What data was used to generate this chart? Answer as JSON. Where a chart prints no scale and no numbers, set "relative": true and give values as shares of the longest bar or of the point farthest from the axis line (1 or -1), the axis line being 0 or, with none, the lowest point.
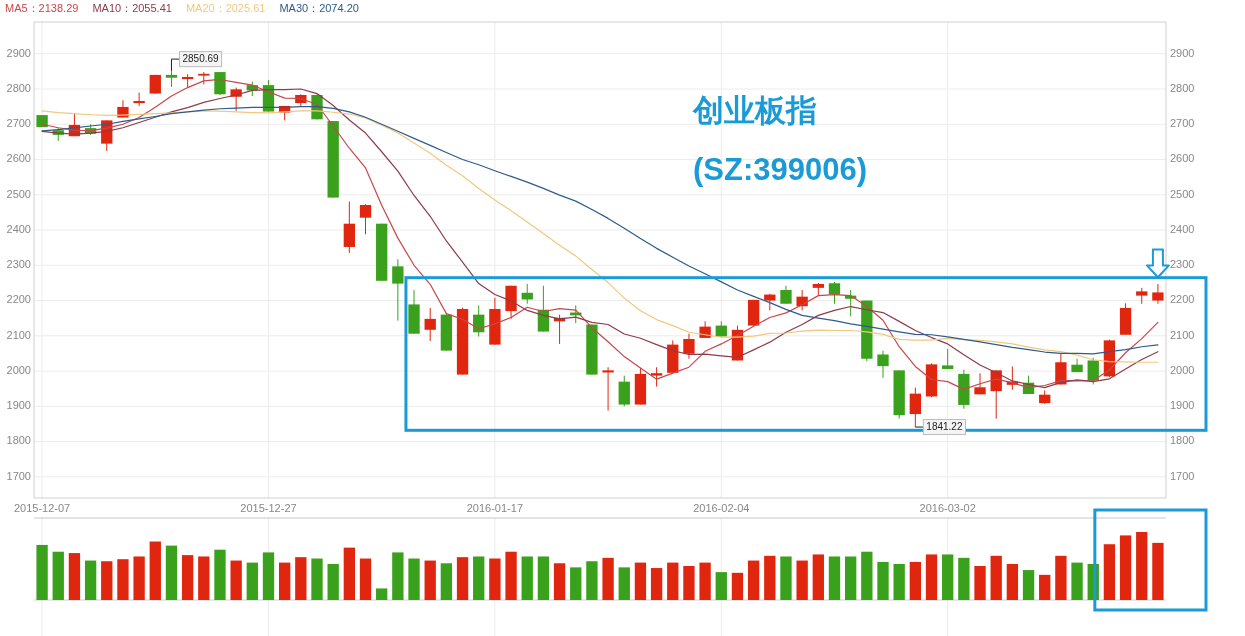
{
  "chart_data": [
    {
      "type": "candlestick",
      "title": "创业板指",
      "subtitle": "(SZ:399006)",
      "legend": "top left",
      "grid": true,
      "tick_labels": "y",
      "categories": [
        "2015-12-07",
        null,
        null,
        null,
        null,
        null,
        null,
        null,
        null,
        null,
        null,
        null,
        null,
        null,
        "2015-12-27",
        null,
        null,
        null,
        null,
        null,
        null,
        null,
        null,
        null,
        null,
        null,
        null,
        null,
        "2016-01-17",
        null,
        null,
        null,
        null,
        null,
        null,
        null,
        null,
        null,
        null,
        null,
        null,
        null,
        "2016-02-04",
        null,
        null,
        null,
        null,
        null,
        null,
        null,
        null,
        null,
        null,
        null,
        null,
        null,
        "2016-03-02",
        null,
        null,
        null,
        null,
        null,
        null,
        null,
        null,
        null,
        null,
        null,
        null,
        null
      ],
      "ohlc": [
        [
          2726,
          2726,
          2692,
          2692
        ],
        [
          2683,
          2689,
          2653,
          2670
        ],
        [
          2666,
          2730,
          2666,
          2698
        ],
        [
          2689,
          2700,
          2670,
          2673
        ],
        [
          2645,
          2711,
          2624,
          2711
        ],
        [
          2719,
          2768,
          2719,
          2749
        ],
        [
          2760,
          2790,
          2752,
          2766
        ],
        [
          2787,
          2840,
          2787,
          2840
        ],
        [
          2840,
          2850.69,
          2806,
          2832
        ],
        [
          2828,
          2842,
          2804,
          2834
        ],
        [
          2838,
          2848,
          2813,
          2843
        ],
        [
          2848,
          2848,
          2783,
          2785
        ],
        [
          2778,
          2804,
          2738,
          2799
        ],
        [
          2811,
          2821,
          2780,
          2796
        ],
        [
          2811,
          2825,
          2736,
          2736
        ],
        [
          2733,
          2752,
          2711,
          2752
        ],
        [
          2760,
          2785,
          2752,
          2783
        ],
        [
          2783,
          2785,
          2714,
          2714
        ],
        [
          2709,
          2709,
          2492,
          2492
        ],
        [
          2352,
          2481,
          2335,
          2418
        ],
        [
          2435,
          2473,
          2388,
          2471
        ],
        [
          2418,
          2418,
          2256,
          2256
        ],
        [
          2297,
          2317,
          2143,
          2248
        ],
        [
          2189,
          2230,
          2106,
          2106
        ],
        [
          2117,
          2179,
          2085,
          2148
        ],
        [
          2160,
          2164,
          2058,
          2058
        ],
        [
          1990,
          2180,
          1990,
          2176
        ],
        [
          2160,
          2186,
          2098,
          2110
        ],
        [
          2075,
          2208,
          2075,
          2176
        ],
        [
          2170,
          2242,
          2148,
          2242
        ],
        [
          2222,
          2247,
          2191,
          2203
        ],
        [
          2174,
          2242,
          2112,
          2112
        ],
        [
          2141,
          2160,
          2077,
          2151
        ],
        [
          2166,
          2186,
          2136,
          2158
        ],
        [
          2132,
          2132,
          1990,
          1990
        ],
        [
          1996,
          2011,
          1888,
          2002
        ],
        [
          1970,
          1987,
          1900,
          1905
        ],
        [
          1905,
          2009,
          1905,
          1992
        ],
        [
          1987,
          2011,
          1956,
          1994
        ],
        [
          1995,
          2087,
          1995,
          2075
        ],
        [
          2049,
          2106,
          2035,
          2091
        ],
        [
          2094,
          2141,
          2094,
          2126
        ],
        [
          2129,
          2141,
          2098,
          2098
        ],
        [
          2030,
          2129,
          2030,
          2117
        ],
        [
          2129,
          2202,
          2129,
          2202
        ],
        [
          2200,
          2219,
          2172,
          2217
        ],
        [
          2230,
          2242,
          2191,
          2191
        ],
        [
          2184,
          2230,
          2172,
          2211
        ],
        [
          2236,
          2250,
          2214,
          2247
        ],
        [
          2249,
          2253,
          2191,
          2217
        ],
        [
          2214,
          2230,
          2155,
          2205
        ],
        [
          2200,
          2200,
          2028,
          2035
        ],
        [
          2047,
          2058,
          1981,
          2014
        ],
        [
          2002,
          2002,
          1865,
          1875
        ],
        [
          1878,
          1953,
          1841.22,
          1936
        ],
        [
          1928,
          2022,
          1926,
          2019
        ],
        [
          2016,
          2063,
          2006,
          2006
        ],
        [
          1992,
          2004,
          1893,
          1904
        ],
        [
          1934,
          1994,
          1934,
          1954
        ],
        [
          1943,
          2002,
          1865,
          2002
        ],
        [
          1961,
          2013,
          1947,
          1970
        ],
        [
          1967,
          1987,
          1935,
          1935
        ],
        [
          1909,
          1945,
          1907,
          1933
        ],
        [
          1962,
          2049,
          1962,
          2025
        ],
        [
          2018,
          2035,
          1997,
          1997
        ],
        [
          2030,
          2038,
          1962,
          1973
        ],
        [
          1985,
          2089,
          1983,
          2087
        ],
        [
          2103,
          2192,
          2103,
          2179
        ],
        [
          2214,
          2236,
          2191,
          2226
        ],
        [
          2200,
          2247,
          2191,
          2223
        ]
      ],
      "colors": [
        "#3aa11c",
        "#3aa11c",
        "#e0260e",
        "#3aa11c",
        "#e0260e",
        "#e0260e",
        "#e0260e",
        "#e0260e",
        "#3aa11c",
        "#e0260e",
        "#e0260e",
        "#3aa11c",
        "#e0260e",
        "#3aa11c",
        "#3aa11c",
        "#e0260e",
        "#e0260e",
        "#3aa11c",
        "#3aa11c",
        "#e0260e",
        "#e0260e",
        "#3aa11c",
        "#3aa11c",
        "#3aa11c",
        "#e0260e",
        "#3aa11c",
        "#e0260e",
        "#3aa11c",
        "#e0260e",
        "#e0260e",
        "#3aa11c",
        "#3aa11c",
        "#e0260e",
        "#3aa11c",
        "#3aa11c",
        "#e0260e",
        "#3aa11c",
        "#e0260e",
        "#e0260e",
        "#e0260e",
        "#e0260e",
        "#e0260e",
        "#3aa11c",
        "#e0260e",
        "#e0260e",
        "#e0260e",
        "#3aa11c",
        "#e0260e",
        "#e0260e",
        "#3aa11c",
        "#3aa11c",
        "#3aa11c",
        "#3aa11c",
        "#3aa11c",
        "#e0260e",
        "#e0260e",
        "#3aa11c",
        "#3aa11c",
        "#e0260e",
        "#e0260e",
        "#e0260e",
        "#3aa11c",
        "#e0260e",
        "#e0260e",
        "#3aa11c",
        "#3aa11c",
        "#e0260e",
        "#e0260e",
        "#e0260e",
        "#e0260e"
      ],
      "series": [
        {
          "type": "line",
          "name": "MA5：2138.29",
          "color": "#c8474a",
          "values": [
            2700,
            2690,
            2683,
            2682,
            2689,
            2700,
            2719,
            2748,
            2780,
            2804,
            2823,
            2827,
            2819,
            2811,
            2792,
            2774,
            2773,
            2756,
            2695,
            2632,
            2576,
            2470,
            2377,
            2300,
            2246,
            2163,
            2147,
            2120,
            2134,
            2152,
            2181,
            2169,
            2177,
            2173,
            2123,
            2083,
            2041,
            2009,
            1977,
            1994,
            2011,
            2056,
            2077,
            2101,
            2127,
            2152,
            2165,
            2188,
            2214,
            2217,
            2214,
            2183,
            2144,
            2069,
            2013,
            1976,
            1970,
            1948,
            1964,
            1977,
            1967,
            1953,
            1959,
            1973,
            1972,
            1973,
            2003,
            2052,
            2092,
            2138
          ]
        },
        {
          "type": "line",
          "name": "MA10：2055.41",
          "color": "#8e3b4b",
          "values": [
            2680,
            2675,
            2672,
            2675,
            2680,
            2690,
            2705,
            2720,
            2735,
            2747,
            2762,
            2773,
            2783,
            2796,
            2798,
            2798,
            2800,
            2787,
            2753,
            2712,
            2675,
            2622,
            2567,
            2498,
            2439,
            2369,
            2309,
            2248,
            2217,
            2199,
            2172,
            2158,
            2148,
            2153,
            2138,
            2132,
            2105,
            2093,
            2075,
            2058,
            2047,
            2048,
            2043,
            2039,
            2060,
            2082,
            2110,
            2132,
            2158,
            2172,
            2183,
            2174,
            2166,
            2141,
            2115,
            2095,
            2077,
            2046,
            2017,
            1995,
            1972,
            1962,
            1953,
            1968,
            1975,
            1970,
            1978,
            2006,
            2033,
            2055
          ]
        },
        {
          "type": "line",
          "name": "MA20：2025.61",
          "color": "#f2c77e",
          "values": [
            2738,
            2733,
            2730,
            2727,
            2725,
            2726,
            2728,
            2730,
            2732,
            2735,
            2737,
            2737,
            2735,
            2733,
            2732,
            2735,
            2738,
            2738,
            2734,
            2729,
            2718,
            2697,
            2675,
            2647,
            2618,
            2584,
            2554,
            2518,
            2485,
            2455,
            2423,
            2390,
            2357,
            2326,
            2288,
            2251,
            2207,
            2171,
            2146,
            2129,
            2110,
            2103,
            2096,
            2096,
            2099,
            2107,
            2108,
            2113,
            2116,
            2115,
            2115,
            2111,
            2104,
            2090,
            2088,
            2088,
            2093,
            2089,
            2087,
            2083,
            2077,
            2068,
            2060,
            2055,
            2045,
            2032,
            2027,
            2026,
            2025,
            2025
          ]
        },
        {
          "type": "line",
          "name": "MA30：2074.20",
          "color": "#2d5c8c",
          "values": [
            2681,
            2685,
            2690,
            2695,
            2700,
            2708,
            2715,
            2722,
            2730,
            2735,
            2740,
            2744,
            2746,
            2748,
            2748,
            2748,
            2750,
            2750,
            2745,
            2735,
            2720,
            2700,
            2680,
            2660,
            2640,
            2620,
            2600,
            2585,
            2568,
            2552,
            2536,
            2518,
            2499,
            2482,
            2458,
            2433,
            2405,
            2376,
            2348,
            2323,
            2298,
            2276,
            2253,
            2230,
            2212,
            2194,
            2175,
            2158,
            2150,
            2143,
            2134,
            2127,
            2119,
            2111,
            2104,
            2103,
            2097,
            2090,
            2083,
            2075,
            2067,
            2061,
            2054,
            2050,
            2050,
            2049,
            2055,
            2061,
            2069,
            2074
          ]
        }
      ],
      "ylim": [
        1640,
        2990
      ],
      "yticks": [
        1700,
        1800,
        1900,
        2000,
        2100,
        2200,
        2300,
        2400,
        2500,
        2600,
        2700,
        2800,
        2900
      ],
      "y2lim": [
        1640,
        2990
      ],
      "y2ticks": [
        1700,
        1800,
        1900,
        2000,
        2100,
        2200,
        2300,
        2400,
        2500,
        2600,
        2700,
        2800,
        2900
      ],
      "annotations": [
        {
          "text": "2850.69",
          "y": 2850.69
        },
        {
          "text": "1841.22",
          "y": 1841.22
        }
      ]
    },
    {
      "type": "bar",
      "relative": true,
      "grid": "x",
      "tick_labels": "x",
      "categories": [
        "2015-12-07",
        null,
        null,
        null,
        null,
        null,
        null,
        null,
        null,
        null,
        null,
        null,
        null,
        null,
        "2015-12-27",
        null,
        null,
        null,
        null,
        null,
        null,
        null,
        null,
        null,
        null,
        null,
        null,
        null,
        "2016-01-17",
        null,
        null,
        null,
        null,
        null,
        null,
        null,
        null,
        null,
        null,
        null,
        null,
        null,
        "2016-02-04",
        null,
        null,
        null,
        null,
        null,
        null,
        null,
        null,
        null,
        null,
        null,
        null,
        null,
        "2016-03-02",
        null,
        null,
        null,
        null,
        null,
        null,
        null,
        null,
        null,
        null,
        null,
        null,
        null
      ],
      "values": [
        0.81,
        0.71,
        0.69,
        0.58,
        0.57,
        0.6,
        0.64,
        0.86,
        0.8,
        0.66,
        0.64,
        0.74,
        0.58,
        0.55,
        0.7,
        0.55,
        0.63,
        0.61,
        0.53,
        0.77,
        0.61,
        0.17,
        0.7,
        0.61,
        0.58,
        0.54,
        0.63,
        0.64,
        0.61,
        0.71,
        0.64,
        0.64,
        0.54,
        0.48,
        0.57,
        0.62,
        0.48,
        0.55,
        0.47,
        0.55,
        0.5,
        0.55,
        0.41,
        0.4,
        0.58,
        0.65,
        0.64,
        0.58,
        0.67,
        0.64,
        0.64,
        0.71,
        0.56,
        0.53,
        0.56,
        0.67,
        0.67,
        0.62,
        0.5,
        0.65,
        0.53,
        0.44,
        0.37,
        0.65,
        0.55,
        0.53,
        0.82,
        0.95,
        1,
        0.84
      ],
      "colors": [
        "#3aa11c",
        "#3aa11c",
        "#e0260e",
        "#3aa11c",
        "#e0260e",
        "#e0260e",
        "#e0260e",
        "#e0260e",
        "#3aa11c",
        "#e0260e",
        "#e0260e",
        "#3aa11c",
        "#e0260e",
        "#3aa11c",
        "#3aa11c",
        "#e0260e",
        "#e0260e",
        "#3aa11c",
        "#3aa11c",
        "#e0260e",
        "#e0260e",
        "#3aa11c",
        "#3aa11c",
        "#3aa11c",
        "#e0260e",
        "#3aa11c",
        "#e0260e",
        "#3aa11c",
        "#e0260e",
        "#e0260e",
        "#3aa11c",
        "#3aa11c",
        "#e0260e",
        "#3aa11c",
        "#3aa11c",
        "#e0260e",
        "#3aa11c",
        "#e0260e",
        "#e0260e",
        "#e0260e",
        "#e0260e",
        "#e0260e",
        "#3aa11c",
        "#e0260e",
        "#e0260e",
        "#e0260e",
        "#3aa11c",
        "#e0260e",
        "#e0260e",
        "#3aa11c",
        "#3aa11c",
        "#3aa11c",
        "#3aa11c",
        "#3aa11c",
        "#e0260e",
        "#e0260e",
        "#3aa11c",
        "#3aa11c",
        "#e0260e",
        "#e0260e",
        "#e0260e",
        "#3aa11c",
        "#e0260e",
        "#e0260e",
        "#3aa11c",
        "#3aa11c",
        "#e0260e",
        "#e0260e",
        "#e0260e",
        "#e0260e"
      ]
    }
  ]
}
